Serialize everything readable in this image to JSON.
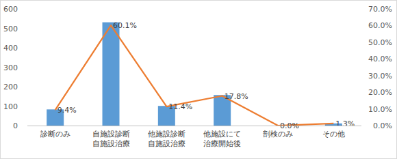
{
  "chart_data": {
    "type": "bar",
    "categories": [
      "診断のみ",
      "自施設診断\n自施設治療",
      "他施設診断\n自施設治療",
      "他施設にて\n治療開始後",
      "剖検のみ",
      "その他"
    ],
    "series": [
      {
        "type": "bar",
        "color": "#5b9bd5",
        "values": [
          83,
          531,
          101,
          157,
          0,
          11
        ]
      },
      {
        "type": "line",
        "color": "#ed7d31",
        "axis": "y2",
        "data_labels": true,
        "values": [
          9.4,
          60.1,
          11.4,
          17.8,
          0.0,
          1.3
        ],
        "value_labels": [
          "9.4%",
          "60.1%",
          "11.4%",
          "17.8%",
          "0.0%",
          "1.3%"
        ]
      }
    ],
    "ylim": [
      0,
      600
    ],
    "yticks": [
      0,
      100,
      200,
      300,
      400,
      500,
      600
    ],
    "y2lim": [
      0,
      70
    ],
    "y2ticks": [
      {
        "value": 0,
        "label": "0.0%"
      },
      {
        "value": 10,
        "label": "10.0%"
      },
      {
        "value": 20,
        "label": "20.0%"
      },
      {
        "value": 30,
        "label": "30.0%"
      },
      {
        "value": 40,
        "label": "40.0%"
      },
      {
        "value": 50,
        "label": "50.0%"
      },
      {
        "value": 60,
        "label": "60.0%"
      },
      {
        "value": 70,
        "label": "70.0%"
      }
    ],
    "grid": false
  }
}
